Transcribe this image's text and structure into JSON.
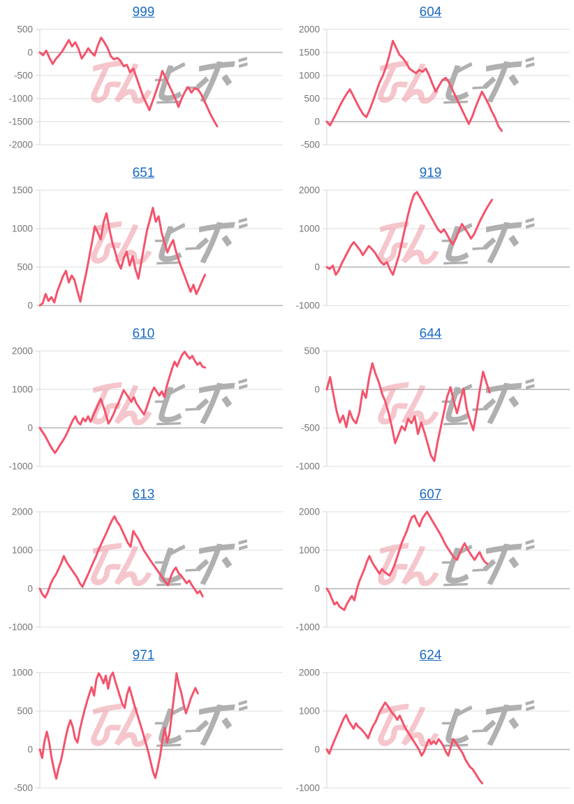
{
  "page": {
    "background": "#ffffff"
  },
  "colors": {
    "title_link": "#1b6ac2",
    "line": "#f4536c",
    "grid": "#dddddd",
    "zero_line": "#8f8f8f",
    "tick_label": "#757575",
    "axis_line": "#d6d6d6",
    "watermark_pink": "#e87a88",
    "watermark_gray": "#a3a3a3"
  },
  "watermark": {
    "name": "min-repo-logo-watermark",
    "pink_text": "みん",
    "gray_text": "レポ"
  },
  "chart_data": [
    {
      "type": "line",
      "title": "999",
      "yticks": [
        500,
        0,
        -500,
        -1000,
        -1500,
        -2000
      ],
      "ylim": [
        -2000,
        500
      ],
      "x_end_fraction": 0.73,
      "values": [
        0,
        -60,
        40,
        -120,
        -250,
        -140,
        -60,
        30,
        150,
        270,
        130,
        220,
        80,
        -130,
        -30,
        90,
        0,
        -70,
        150,
        320,
        220,
        100,
        -80,
        -150,
        -120,
        -180,
        -300,
        -270,
        -430,
        -350,
        -550,
        -750,
        -950,
        -1100,
        -1250,
        -1050,
        -850,
        -650,
        -400,
        -550,
        -700,
        -850,
        -1000,
        -1180,
        -1000,
        -850,
        -750,
        -870,
        -780,
        -800,
        -900,
        -1050,
        -1200,
        -1350,
        -1480,
        -1600
      ]
    },
    {
      "type": "line",
      "title": "604",
      "yticks": [
        2000,
        1500,
        1000,
        500,
        0,
        -500
      ],
      "ylim": [
        -500,
        2000
      ],
      "x_end_fraction": 0.72,
      "values": [
        0,
        -80,
        60,
        200,
        350,
        480,
        600,
        700,
        560,
        420,
        280,
        160,
        100,
        260,
        450,
        650,
        850,
        1000,
        1200,
        1450,
        1750,
        1600,
        1450,
        1380,
        1280,
        1150,
        1100,
        1050,
        1120,
        1080,
        1150,
        1000,
        820,
        650,
        780,
        900,
        950,
        850,
        700,
        550,
        400,
        250,
        100,
        -50,
        100,
        300,
        480,
        650,
        520,
        380,
        220,
        80,
        -100,
        -200
      ]
    },
    {
      "type": "line",
      "title": "651",
      "yticks": [
        1500,
        1000,
        500,
        0
      ],
      "ylim": [
        0,
        1500
      ],
      "x_end_fraction": 0.68,
      "values": [
        0,
        30,
        150,
        60,
        110,
        40,
        180,
        280,
        380,
        450,
        300,
        390,
        330,
        180,
        50,
        250,
        420,
        620,
        820,
        1030,
        950,
        860,
        1080,
        1200,
        1000,
        820,
        700,
        560,
        480,
        620,
        700,
        520,
        640,
        470,
        350,
        560,
        780,
        980,
        1120,
        1270,
        1090,
        1160,
        950,
        820,
        690,
        780,
        850,
        700,
        580,
        480,
        380,
        280,
        180,
        270,
        150,
        230,
        320,
        400
      ]
    },
    {
      "type": "line",
      "title": "919",
      "yticks": [
        2000,
        1000,
        0,
        -1000
      ],
      "ylim": [
        -1000,
        2000
      ],
      "x_end_fraction": 0.68,
      "values": [
        0,
        -50,
        40,
        -200,
        -80,
        100,
        250,
        400,
        550,
        650,
        550,
        450,
        310,
        430,
        550,
        470,
        380,
        250,
        130,
        60,
        130,
        -60,
        -200,
        50,
        300,
        650,
        1000,
        1350,
        1650,
        1880,
        1950,
        1820,
        1680,
        1540,
        1400,
        1260,
        1120,
        980,
        900,
        980,
        850,
        700,
        590,
        750,
        950,
        1120,
        1000,
        880,
        740,
        850,
        1020,
        1200,
        1350,
        1500,
        1630,
        1750
      ]
    },
    {
      "type": "line",
      "title": "610",
      "yticks": [
        2000,
        1000,
        0,
        -1000
      ],
      "ylim": [
        -1000,
        2000
      ],
      "x_end_fraction": 0.68,
      "values": [
        0,
        -100,
        -200,
        -320,
        -450,
        -560,
        -650,
        -550,
        -440,
        -340,
        -230,
        -100,
        60,
        200,
        300,
        150,
        90,
        250,
        170,
        300,
        160,
        320,
        470,
        620,
        750,
        560,
        350,
        110,
        220,
        360,
        520,
        660,
        820,
        980,
        880,
        780,
        680,
        800,
        640,
        540,
        440,
        350,
        520,
        720,
        920,
        1050,
        940,
        840,
        950,
        800,
        1100,
        1320,
        1530,
        1720,
        1600,
        1760,
        1900,
        1980,
        1880,
        1800,
        1870,
        1740,
        1640,
        1700,
        1590,
        1570
      ]
    },
    {
      "type": "line",
      "title": "644",
      "yticks": [
        500,
        0,
        -500,
        -1000
      ],
      "ylim": [
        -1000,
        500
      ],
      "x_end_fraction": 0.67,
      "values": [
        0,
        160,
        -60,
        -280,
        -430,
        -340,
        -490,
        -280,
        -390,
        -440,
        -300,
        -20,
        -110,
        150,
        340,
        200,
        90,
        -60,
        -160,
        -310,
        -490,
        -700,
        -590,
        -480,
        -530,
        -380,
        -440,
        -350,
        -580,
        -430,
        -560,
        -710,
        -860,
        -930,
        -690,
        -490,
        -290,
        -90,
        30,
        -160,
        -310,
        -140,
        10,
        -260,
        -410,
        -530,
        -290,
        0,
        230,
        90,
        -40
      ]
    },
    {
      "type": "line",
      "title": "613",
      "yticks": [
        2000,
        1000,
        0,
        -1000
      ],
      "ylim": [
        -1000,
        2000
      ],
      "x_end_fraction": 0.67,
      "values": [
        0,
        -150,
        -230,
        -90,
        110,
        260,
        360,
        510,
        660,
        850,
        700,
        590,
        490,
        390,
        290,
        140,
        50,
        210,
        360,
        520,
        680,
        830,
        1010,
        1160,
        1310,
        1460,
        1620,
        1770,
        1880,
        1740,
        1640,
        1490,
        1340,
        1190,
        1090,
        1500,
        1390,
        1280,
        1140,
        990,
        890,
        780,
        680,
        580,
        480,
        380,
        280,
        180,
        90,
        300,
        460,
        550,
        400,
        340,
        240,
        140,
        210,
        90,
        -10,
        -120,
        -60,
        -200
      ]
    },
    {
      "type": "line",
      "title": "607",
      "yticks": [
        2000,
        1000,
        0,
        -1000
      ],
      "ylim": [
        -1000,
        2000
      ],
      "x_end_fraction": 0.66,
      "values": [
        0,
        -100,
        -260,
        -410,
        -350,
        -460,
        -510,
        -550,
        -400,
        -290,
        -190,
        -300,
        -10,
        200,
        350,
        510,
        700,
        850,
        700,
        590,
        490,
        390,
        510,
        440,
        390,
        340,
        460,
        610,
        810,
        1010,
        1210,
        1360,
        1510,
        1710,
        1860,
        1900,
        1740,
        1620,
        1810,
        1910,
        2000,
        1890,
        1780,
        1670,
        1560,
        1450,
        1330,
        1190,
        1080,
        980,
        880,
        790,
        750,
        910,
        1060,
        1180,
        1040,
        940,
        840,
        750,
        860,
        950,
        800,
        700,
        650
      ]
    },
    {
      "type": "line",
      "title": "971",
      "yticks": [
        1000,
        500,
        0,
        -500
      ],
      "ylim": [
        -500,
        1000
      ],
      "x_end_fraction": 0.65,
      "values": [
        0,
        -110,
        110,
        230,
        90,
        -110,
        -260,
        -380,
        -240,
        -140,
        10,
        160,
        290,
        380,
        290,
        140,
        90,
        260,
        390,
        510,
        620,
        720,
        810,
        700,
        910,
        990,
        940,
        860,
        960,
        790,
        950,
        1000,
        890,
        790,
        690,
        590,
        540,
        710,
        810,
        700,
        590,
        490,
        390,
        290,
        190,
        80,
        -30,
        -160,
        -290,
        -370,
        -240,
        -90,
        120,
        280,
        90,
        210,
        460,
        710,
        990,
        840,
        740,
        590,
        470,
        560,
        660,
        730,
        800,
        730
      ]
    },
    {
      "type": "line",
      "title": "624",
      "yticks": [
        2000,
        1000,
        0,
        -1000
      ],
      "ylim": [
        -1000,
        2000
      ],
      "x_end_fraction": 0.64,
      "values": [
        0,
        -110,
        60,
        210,
        360,
        510,
        660,
        810,
        900,
        740,
        640,
        540,
        680,
        590,
        540,
        470,
        390,
        290,
        460,
        610,
        710,
        860,
        1010,
        1110,
        1220,
        1140,
        1040,
        940,
        880,
        770,
        880,
        740,
        590,
        490,
        390,
        290,
        190,
        90,
        -10,
        -160,
        -60,
        110,
        260,
        140,
        210,
        140,
        270,
        190,
        90,
        -60,
        -160,
        60,
        270,
        190,
        90,
        -10,
        -110,
        -260,
        -360,
        -460,
        -510,
        -610,
        -710,
        -810,
        -880
      ]
    }
  ]
}
